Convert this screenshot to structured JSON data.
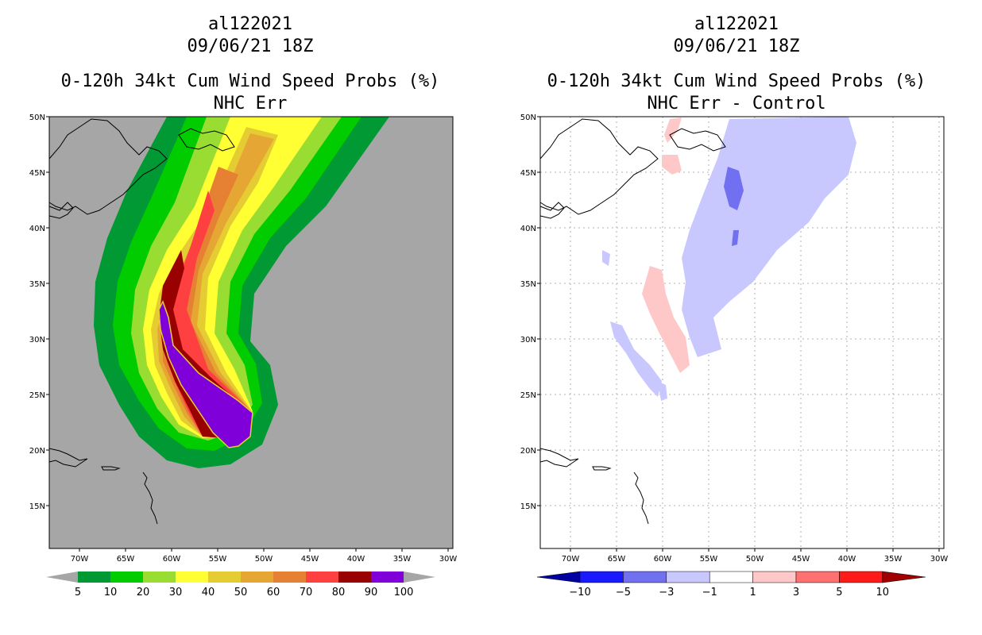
{
  "left": {
    "storm_id": "al122021",
    "datetime": "09/06/21 18Z",
    "title": "0-120h 34kt Cum Wind Speed Probs (%)",
    "subtitle": "NHC Err",
    "lat_labels": [
      "50N",
      "45N",
      "40N",
      "35N",
      "30N",
      "25N",
      "20N",
      "15N"
    ],
    "lon_labels": [
      "70W",
      "65W",
      "60W",
      "55W",
      "50W",
      "45W",
      "40W",
      "35W",
      "30W"
    ],
    "colorbar_labels": [
      "5",
      "10",
      "20",
      "30",
      "40",
      "50",
      "60",
      "70",
      "80",
      "90",
      "100"
    ],
    "colorbar_colors": [
      "#009933",
      "#00cc00",
      "#99dd33",
      "#ffff33",
      "#e6cc33",
      "#e6a633",
      "#e68033",
      "#ff4040",
      "#990000",
      "#8000d9"
    ],
    "background_color": "#a6a6a6"
  },
  "right": {
    "storm_id": "al122021",
    "datetime": "09/06/21 18Z",
    "title": "0-120h 34kt Cum Wind Speed Probs (%)",
    "subtitle": "NHC Err - Control",
    "lat_labels": [
      "50N",
      "45N",
      "40N",
      "35N",
      "30N",
      "25N",
      "20N",
      "15N"
    ],
    "lon_labels": [
      "70W",
      "65W",
      "60W",
      "55W",
      "50W",
      "45W",
      "40W",
      "35W",
      "30W"
    ],
    "colorbar_labels": [
      "−10",
      "−5",
      "−3",
      "−1",
      "1",
      "3",
      "5",
      "10"
    ],
    "colorbar_colors": [
      "#0000a0",
      "#1a1aff",
      "#7070f0",
      "#c8c8ff",
      "#ffffff",
      "#ffc8c8",
      "#ff7070",
      "#ff1a1a",
      "#a00000"
    ],
    "neg_color": "#c8c8ff",
    "pos_color": "#ffc8c8"
  }
}
